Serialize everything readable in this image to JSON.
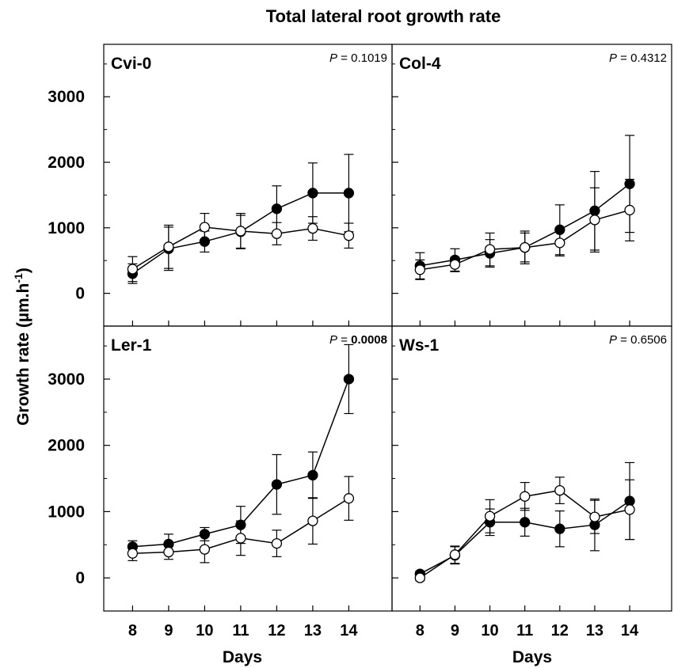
{
  "figure": {
    "title": "Total lateral root growth rate",
    "ylabel": "Growth rate (µm.h",
    "ylabel_superscript": "-1",
    "ylabel_close": ")",
    "xlabel": "Days",
    "p_prefix": "P",
    "p_equals": " = "
  },
  "chart_data": [
    {
      "type": "line",
      "panel": "Cvi-0",
      "p_value": "0.1019",
      "p_bold": false,
      "x": [
        8,
        9,
        10,
        11,
        12,
        13,
        14
      ],
      "xlim": [
        7.2,
        15.2
      ],
      "ylim": [
        -500,
        3800
      ],
      "yticks": [
        0,
        1000,
        2000,
        3000
      ],
      "series": [
        {
          "marker": "filled",
          "values": [
            300,
            680,
            790,
            940,
            1290,
            1530,
            1530
          ],
          "errors": [
            150,
            330,
            160,
            250,
            350,
            460,
            590
          ]
        },
        {
          "marker": "open",
          "values": [
            370,
            710,
            1010,
            950,
            910,
            990,
            880
          ],
          "errors": [
            190,
            330,
            210,
            270,
            170,
            180,
            190
          ]
        }
      ]
    },
    {
      "type": "line",
      "panel": "Col-4",
      "p_value": "0.4312",
      "p_bold": false,
      "x": [
        8,
        9,
        10,
        11,
        12,
        13,
        14
      ],
      "xlim": [
        7.2,
        15.2
      ],
      "ylim": [
        -500,
        3800
      ],
      "yticks": [
        0,
        1000,
        2000,
        3000
      ],
      "series": [
        {
          "marker": "filled",
          "values": [
            420,
            510,
            610,
            700,
            970,
            1260,
            1670
          ],
          "errors": [
            200,
            170,
            210,
            250,
            380,
            600,
            740
          ]
        },
        {
          "marker": "open",
          "values": [
            360,
            440,
            670,
            700,
            770,
            1120,
            1270
          ],
          "errors": [
            150,
            110,
            250,
            220,
            200,
            490,
            470
          ]
        }
      ]
    },
    {
      "type": "line",
      "panel": "Ler-1",
      "p_value": "0.0008",
      "p_bold": true,
      "x": [
        8,
        9,
        10,
        11,
        12,
        13,
        14
      ],
      "xlim": [
        7.2,
        15.2
      ],
      "ylim": [
        -500,
        3800
      ],
      "yticks": [
        0,
        1000,
        2000,
        3000
      ],
      "series": [
        {
          "marker": "filled",
          "values": [
            470,
            510,
            660,
            800,
            1410,
            1550,
            3000
          ],
          "errors": [
            90,
            150,
            100,
            280,
            450,
            350,
            520
          ]
        },
        {
          "marker": "open",
          "values": [
            370,
            390,
            430,
            600,
            520,
            860,
            1200
          ],
          "errors": [
            110,
            110,
            200,
            260,
            200,
            350,
            330
          ]
        }
      ]
    },
    {
      "type": "line",
      "panel": "Ws-1",
      "p_value": "0.6506",
      "p_bold": false,
      "x": [
        8,
        9,
        10,
        11,
        12,
        13,
        14
      ],
      "xlim": [
        7.2,
        15.2
      ],
      "ylim": [
        -500,
        3800
      ],
      "yticks": [
        0,
        1000,
        2000,
        3000
      ],
      "series": [
        {
          "marker": "filled",
          "values": [
            60,
            340,
            840,
            840,
            740,
            800,
            1160
          ],
          "errors": [
            40,
            130,
            200,
            210,
            270,
            390,
            580
          ]
        },
        {
          "marker": "open",
          "values": [
            0,
            350,
            930,
            1230,
            1320,
            920,
            1030
          ],
          "errors": [
            40,
            130,
            250,
            210,
            200,
            250,
            450
          ]
        }
      ]
    }
  ]
}
